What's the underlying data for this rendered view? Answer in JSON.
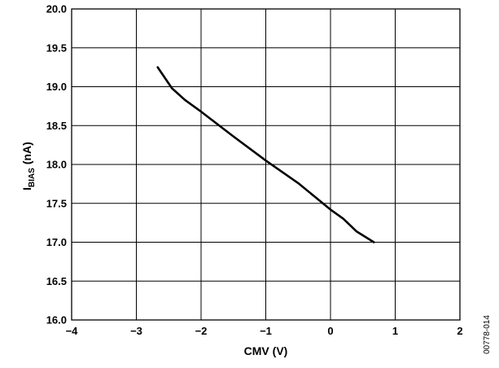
{
  "chart_data": {
    "type": "line",
    "title": "",
    "xlabel": "CMV (V)",
    "ylabel_main": "I",
    "ylabel_sub": "BIAS",
    "ylabel_tail": " (nA)",
    "xlim": [
      -4,
      2
    ],
    "ylim": [
      16.0,
      20.0
    ],
    "xticks": [
      -4,
      -3,
      -2,
      -1,
      0,
      1,
      2
    ],
    "xtick_labels": [
      "−4",
      "−3",
      "−2",
      "−1",
      "0",
      "1",
      "2"
    ],
    "yticks": [
      16.0,
      16.5,
      17.0,
      17.5,
      18.0,
      18.5,
      19.0,
      19.5,
      20.0
    ],
    "ytick_labels": [
      "16.0",
      "16.5",
      "17.0",
      "17.5",
      "18.0",
      "18.5",
      "19.0",
      "19.5",
      "20.0"
    ],
    "grid": true,
    "legend": "none",
    "series": [
      {
        "x": [
          -2.67,
          -2.45,
          -2.25,
          -2.0,
          -1.5,
          -1.0,
          -0.5,
          0.0,
          0.2,
          0.4,
          0.67
        ],
        "y": [
          19.25,
          18.98,
          18.83,
          18.68,
          18.36,
          18.05,
          17.76,
          17.42,
          17.3,
          17.14,
          17.0
        ]
      }
    ]
  },
  "figure_id": "00778-014"
}
